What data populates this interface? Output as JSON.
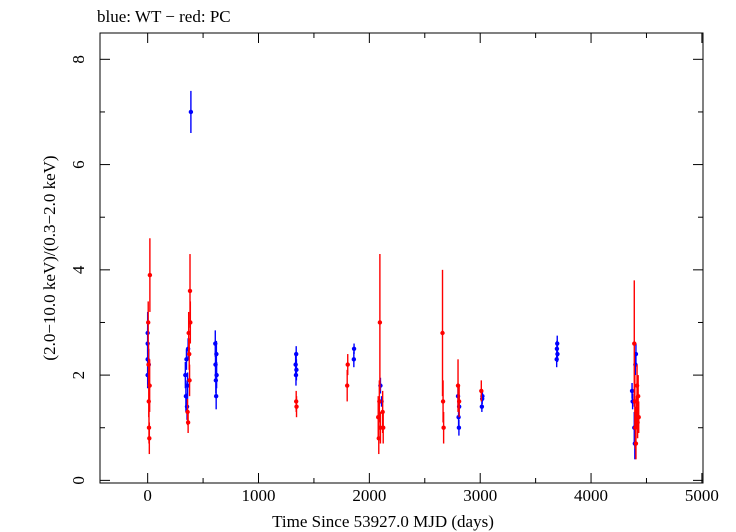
{
  "chart_data": {
    "type": "scatter",
    "title": "blue: WT − red: PC",
    "xlabel": "Time Since 53927.0 MJD (days)",
    "ylabel": "(2.0−10.0 keV)/(0.3−2.0 keV)",
    "xlim": [
      -430,
      5010
    ],
    "ylim": [
      -0.05,
      8.5
    ],
    "x_ticks": [
      0,
      1000,
      2000,
      3000,
      4000,
      5000
    ],
    "x_tick_labels": [
      "0",
      "1000",
      "2000",
      "3000",
      "4000",
      "5000"
    ],
    "y_ticks": [
      0,
      2,
      4,
      6,
      8
    ],
    "y_tick_labels": [
      "0",
      "2",
      "4",
      "6",
      "8"
    ],
    "grid": false,
    "legend": "none",
    "series": [
      {
        "name": "WT",
        "color": "#0000ff",
        "points": [
          {
            "x": 0,
            "y": 2.6,
            "yerr": 0.3
          },
          {
            "x": 0,
            "y": 2.3,
            "yerr": 0.3
          },
          {
            "x": 0,
            "y": 2.0,
            "yerr": 0.25
          },
          {
            "x": 0,
            "y": 2.8,
            "yerr": 0.4
          },
          {
            "x": 10,
            "y": 2.2,
            "yerr": 0.3
          },
          {
            "x": 340,
            "y": 2.0,
            "yerr": 0.25
          },
          {
            "x": 345,
            "y": 1.6,
            "yerr": 0.3
          },
          {
            "x": 350,
            "y": 2.3,
            "yerr": 0.2
          },
          {
            "x": 355,
            "y": 1.4,
            "yerr": 0.25
          },
          {
            "x": 360,
            "y": 1.8,
            "yerr": 0.25
          },
          {
            "x": 365,
            "y": 2.5,
            "yerr": 0.2
          },
          {
            "x": 390,
            "y": 7.0,
            "yerr": 0.4
          },
          {
            "x": 610,
            "y": 2.6,
            "yerr": 0.25
          },
          {
            "x": 612,
            "y": 2.2,
            "yerr": 0.25
          },
          {
            "x": 615,
            "y": 1.9,
            "yerr": 0.25
          },
          {
            "x": 618,
            "y": 1.6,
            "yerr": 0.25
          },
          {
            "x": 620,
            "y": 2.4,
            "yerr": 0.25
          },
          {
            "x": 622,
            "y": 2.0,
            "yerr": 0.25
          },
          {
            "x": 1335,
            "y": 2.2,
            "yerr": 0.2
          },
          {
            "x": 1338,
            "y": 2.0,
            "yerr": 0.2
          },
          {
            "x": 1340,
            "y": 2.4,
            "yerr": 0.15
          },
          {
            "x": 1342,
            "y": 2.1,
            "yerr": 0.2
          },
          {
            "x": 1860,
            "y": 2.3,
            "yerr": 0.15
          },
          {
            "x": 1862,
            "y": 2.5,
            "yerr": 0.1
          },
          {
            "x": 2100,
            "y": 1.8,
            "yerr": 0.15
          },
          {
            "x": 2110,
            "y": 1.5,
            "yerr": 0.1
          },
          {
            "x": 2800,
            "y": 1.6,
            "yerr": 0.2
          },
          {
            "x": 2805,
            "y": 1.2,
            "yerr": 0.2
          },
          {
            "x": 2808,
            "y": 1.0,
            "yerr": 0.15
          },
          {
            "x": 2810,
            "y": 1.4,
            "yerr": 0.2
          },
          {
            "x": 3015,
            "y": 1.4,
            "yerr": 0.1
          },
          {
            "x": 3018,
            "y": 1.55,
            "yerr": 0.1
          },
          {
            "x": 3020,
            "y": 1.6,
            "yerr": 0.1
          },
          {
            "x": 3690,
            "y": 2.3,
            "yerr": 0.15
          },
          {
            "x": 3692,
            "y": 2.5,
            "yerr": 0.15
          },
          {
            "x": 3695,
            "y": 2.6,
            "yerr": 0.15
          },
          {
            "x": 3697,
            "y": 2.4,
            "yerr": 0.15
          },
          {
            "x": 4370,
            "y": 1.7,
            "yerr": 0.15
          },
          {
            "x": 4375,
            "y": 1.5,
            "yerr": 0.15
          },
          {
            "x": 4390,
            "y": 1.0,
            "yerr": 0.3
          },
          {
            "x": 4395,
            "y": 0.7,
            "yerr": 0.3
          },
          {
            "x": 4400,
            "y": 2.2,
            "yerr": 0.2
          },
          {
            "x": 4405,
            "y": 2.4,
            "yerr": 0.2
          }
        ]
      },
      {
        "name": "PC",
        "color": "#ff0000",
        "points": [
          {
            "x": 5,
            "y": 3.0,
            "yerr": 0.4
          },
          {
            "x": 8,
            "y": 2.2,
            "yerr": 0.4
          },
          {
            "x": 10,
            "y": 1.5,
            "yerr": 0.3
          },
          {
            "x": 12,
            "y": 1.0,
            "yerr": 0.3
          },
          {
            "x": 15,
            "y": 0.8,
            "yerr": 0.3
          },
          {
            "x": 18,
            "y": 1.8,
            "yerr": 0.5
          },
          {
            "x": 20,
            "y": 3.9,
            "yerr": 0.7
          },
          {
            "x": 360,
            "y": 1.3,
            "yerr": 0.25
          },
          {
            "x": 365,
            "y": 1.1,
            "yerr": 0.2
          },
          {
            "x": 370,
            "y": 2.8,
            "yerr": 0.4
          },
          {
            "x": 375,
            "y": 2.4,
            "yerr": 0.3
          },
          {
            "x": 378,
            "y": 1.9,
            "yerr": 0.3
          },
          {
            "x": 382,
            "y": 3.6,
            "yerr": 0.7
          },
          {
            "x": 385,
            "y": 3.0,
            "yerr": 0.4
          },
          {
            "x": 1340,
            "y": 1.5,
            "yerr": 0.2
          },
          {
            "x": 1343,
            "y": 1.4,
            "yerr": 0.2
          },
          {
            "x": 1800,
            "y": 1.8,
            "yerr": 0.3
          },
          {
            "x": 1805,
            "y": 2.2,
            "yerr": 0.2
          },
          {
            "x": 2080,
            "y": 1.2,
            "yerr": 0.4
          },
          {
            "x": 2085,
            "y": 0.8,
            "yerr": 0.3
          },
          {
            "x": 2090,
            "y": 1.5,
            "yerr": 0.4
          },
          {
            "x": 2095,
            "y": 3.0,
            "yerr": 1.3
          },
          {
            "x": 2100,
            "y": 1.0,
            "yerr": 0.3
          },
          {
            "x": 2120,
            "y": 1.3,
            "yerr": 0.4
          },
          {
            "x": 2125,
            "y": 1.0,
            "yerr": 0.3
          },
          {
            "x": 2660,
            "y": 2.8,
            "yerr": 1.2
          },
          {
            "x": 2665,
            "y": 1.5,
            "yerr": 0.4
          },
          {
            "x": 2670,
            "y": 1.0,
            "yerr": 0.3
          },
          {
            "x": 2800,
            "y": 1.8,
            "yerr": 0.5
          },
          {
            "x": 2810,
            "y": 1.5,
            "yerr": 0.3
          },
          {
            "x": 3010,
            "y": 1.7,
            "yerr": 0.2
          },
          {
            "x": 4390,
            "y": 2.6,
            "yerr": 1.2
          },
          {
            "x": 4395,
            "y": 1.5,
            "yerr": 0.5
          },
          {
            "x": 4400,
            "y": 1.0,
            "yerr": 0.4
          },
          {
            "x": 4405,
            "y": 0.7,
            "yerr": 0.3
          },
          {
            "x": 4410,
            "y": 1.3,
            "yerr": 0.3
          },
          {
            "x": 4415,
            "y": 1.8,
            "yerr": 0.4
          },
          {
            "x": 4420,
            "y": 1.1,
            "yerr": 0.3
          },
          {
            "x": 4425,
            "y": 1.6,
            "yerr": 0.4
          },
          {
            "x": 4430,
            "y": 1.2,
            "yerr": 0.3
          }
        ]
      }
    ]
  }
}
